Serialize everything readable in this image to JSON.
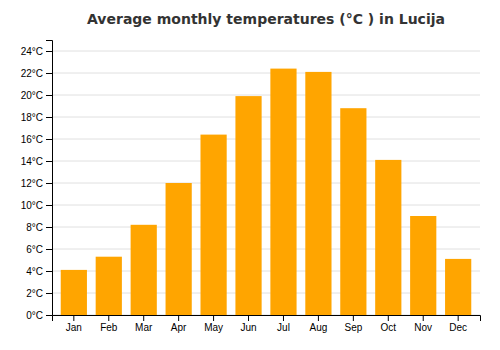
{
  "chart_data": {
    "type": "bar",
    "title": "Average monthly temperatures (°C ) in Lucija",
    "categories": [
      "Jan",
      "Feb",
      "Mar",
      "Apr",
      "May",
      "Jun",
      "Jul",
      "Aug",
      "Sep",
      "Oct",
      "Nov",
      "Dec"
    ],
    "values": [
      4.1,
      5.3,
      8.2,
      12.0,
      16.4,
      19.9,
      22.4,
      22.1,
      18.8,
      14.1,
      9.0,
      5.1
    ],
    "color": "#FFA500",
    "ylim": [
      0,
      25
    ],
    "yticks": [
      {
        "value": 0,
        "label": "0°C"
      },
      {
        "value": 2,
        "label": "2°C"
      },
      {
        "value": 4,
        "label": "4°C"
      },
      {
        "value": 6,
        "label": "6°C"
      },
      {
        "value": 8,
        "label": "8°C"
      },
      {
        "value": 10,
        "label": "10°C"
      },
      {
        "value": 12,
        "label": "12°C"
      },
      {
        "value": 14,
        "label": "14°C"
      },
      {
        "value": 16,
        "label": "16°C"
      },
      {
        "value": 18,
        "label": "18°C"
      },
      {
        "value": 20,
        "label": "20°C"
      },
      {
        "value": 22,
        "label": "22°C"
      },
      {
        "value": 24,
        "label": "24°C"
      }
    ],
    "grid": true
  }
}
